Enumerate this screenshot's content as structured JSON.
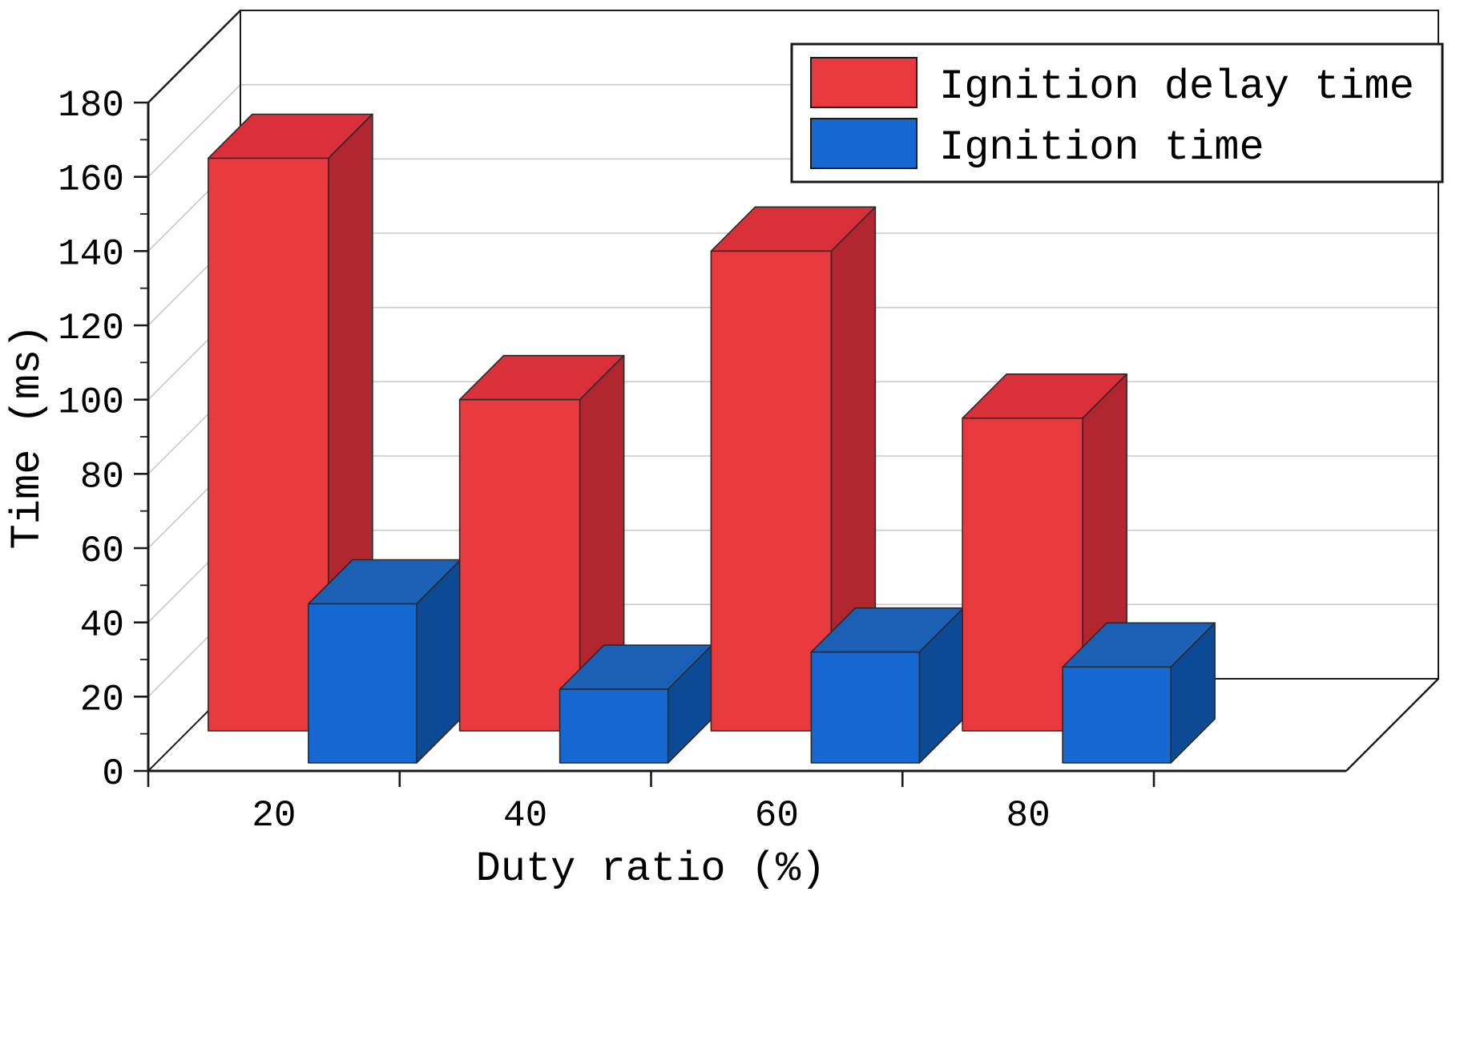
{
  "chart_data": {
    "type": "bar",
    "projection": "3d",
    "xlabel": "Duty ratio (%)",
    "ylabel": "Time (ms)",
    "categories": [
      "20",
      "40",
      "60",
      "80"
    ],
    "series": [
      {
        "name": "Ignition delay time",
        "color": "#e8393f",
        "color_top": "#da3039",
        "color_side": "#b2272f",
        "values": [
          165,
          100,
          140,
          95
        ]
      },
      {
        "name": "Ignition time",
        "color": "#1567d2",
        "color_top": "#1c60b6",
        "color_side": "#0d4a96",
        "values": [
          45,
          22,
          32,
          28
        ]
      }
    ],
    "ylim": [
      0,
      180
    ],
    "ytick_step": 20,
    "yticks": [
      "0",
      "20",
      "40",
      "60",
      "80",
      "100",
      "120",
      "140",
      "160",
      "180"
    ],
    "legend_position": "top-right",
    "grid": true
  },
  "colors": {
    "background": "#ffffff",
    "grid": "#c9c9c9",
    "frame": "#1a1a1a",
    "text": "#000000"
  }
}
